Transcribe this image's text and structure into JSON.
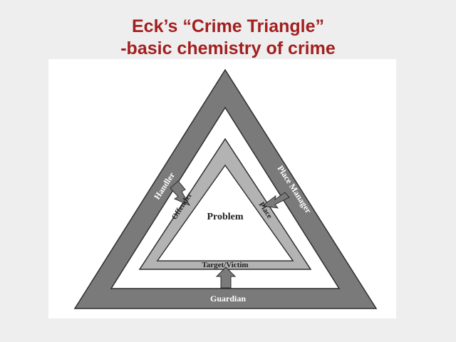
{
  "title": {
    "line1": "Eck’s “Crime Triangle”",
    "line2": "-basic chemistry of crime"
  },
  "diagram": {
    "center_label": "Problem",
    "inner_sides": {
      "left": "Offender",
      "right": "Place",
      "bottom": "Target/Victim"
    },
    "outer_sides": {
      "left": "Handler",
      "right": "Place Manager",
      "bottom": "Guardian"
    },
    "colors": {
      "outer_band": "#7a7a7a",
      "inner_band": "#b3b3b3",
      "outline": "#2e2e2e",
      "arrow": "#7a7a7a",
      "title": "#a31f1f"
    }
  }
}
